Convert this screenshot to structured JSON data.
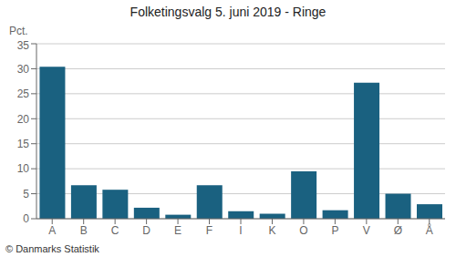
{
  "chart_data": {
    "type": "bar",
    "title": "Folketingsvalg 5. juni 2019 - Ringe",
    "ylabel": "Pct.",
    "annotations": [
      "© Danmarks Statistik"
    ],
    "categories": [
      "A",
      "B",
      "C",
      "D",
      "E",
      "F",
      "I",
      "K",
      "O",
      "P",
      "V",
      "Ø",
      "Å"
    ],
    "values": [
      30.4,
      6.7,
      5.8,
      2.2,
      0.8,
      6.7,
      1.5,
      1.0,
      9.5,
      1.7,
      27.2,
      5.0,
      2.9
    ],
    "color": "#1a6180",
    "ylim": [
      0,
      35
    ],
    "yticks": [
      0,
      5,
      10,
      15,
      20,
      25,
      30,
      35
    ],
    "grid": true
  }
}
